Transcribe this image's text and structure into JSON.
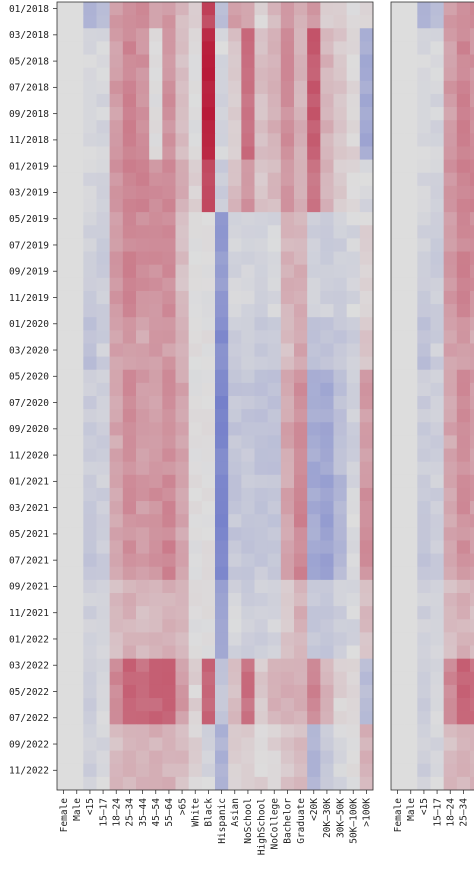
{
  "chart_data": [
    {
      "type": "heatmap",
      "panel": "left",
      "colormap": "coolwarm",
      "rows_by_month_start": "01/2018",
      "row_count": 60,
      "y_tick_labels": [
        "01/2018",
        "03/2018",
        "05/2018",
        "07/2018",
        "09/2018",
        "11/2018",
        "01/2019",
        "03/2019",
        "05/2019",
        "07/2019",
        "09/2019",
        "11/2019",
        "01/2020",
        "03/2020",
        "05/2020",
        "07/2020",
        "09/2020",
        "11/2020",
        "01/2021",
        "03/2021",
        "05/2021",
        "07/2021",
        "09/2021",
        "11/2021",
        "01/2022",
        "03/2022",
        "05/2022",
        "07/2022",
        "09/2022",
        "11/2022"
      ],
      "x_tick_labels": [
        "Female",
        "Male",
        "<15",
        "15–17",
        "18–24",
        "25–34",
        "35–44",
        "45–54",
        "55–64",
        ">65",
        "White",
        "Black",
        "Hispanic",
        "Asian",
        "NoSchool",
        "HighSchool",
        "NoCollege",
        "Bachelor",
        "Graduate",
        "<20K",
        "20K–30K",
        "30K–50K",
        "50K–100K",
        ">100K"
      ],
      "value_range": [
        -1,
        1
      ],
      "periods": [
        {
          "from": 0,
          "to": 2,
          "values": [
            0.0,
            0.0,
            -0.25,
            -0.2,
            0.3,
            0.4,
            0.35,
            0.3,
            0.3,
            0.15,
            0.05,
            0.7,
            -0.2,
            0.3,
            0.25,
            0.05,
            0.15,
            0.3,
            0.2,
            0.3,
            0.1,
            0.05,
            0.0,
            0.05
          ]
        },
        {
          "from": 2,
          "to": 12,
          "values": [
            0.0,
            0.0,
            -0.05,
            -0.05,
            0.3,
            0.4,
            0.35,
            0.0,
            0.35,
            0.15,
            0.0,
            0.85,
            -0.05,
            0.1,
            0.5,
            0.15,
            0.2,
            0.35,
            0.2,
            0.6,
            0.2,
            0.1,
            0.05,
            -0.35
          ]
        },
        {
          "from": 12,
          "to": 16,
          "values": [
            0.0,
            0.0,
            -0.05,
            -0.05,
            0.35,
            0.4,
            0.4,
            0.35,
            0.4,
            0.2,
            0.05,
            0.65,
            -0.1,
            0.15,
            0.35,
            0.1,
            0.15,
            0.3,
            0.2,
            0.45,
            0.2,
            0.1,
            0.05,
            -0.05
          ]
        },
        {
          "from": 16,
          "to": 24,
          "values": [
            0.0,
            0.0,
            -0.1,
            -0.1,
            0.3,
            0.4,
            0.35,
            0.35,
            0.35,
            0.15,
            0.0,
            0.0,
            -0.45,
            -0.05,
            -0.05,
            -0.1,
            -0.05,
            0.2,
            0.2,
            -0.1,
            -0.1,
            -0.1,
            -0.05,
            0.05
          ]
        },
        {
          "from": 24,
          "to": 28,
          "values": [
            0.0,
            0.0,
            -0.2,
            -0.1,
            0.25,
            0.3,
            0.25,
            0.3,
            0.3,
            0.2,
            0.0,
            0.0,
            -0.55,
            -0.1,
            -0.1,
            -0.15,
            -0.1,
            0.15,
            0.25,
            -0.2,
            -0.2,
            -0.15,
            -0.1,
            0.1
          ]
        },
        {
          "from": 28,
          "to": 36,
          "values": [
            0.0,
            0.0,
            -0.1,
            -0.1,
            0.25,
            0.35,
            0.3,
            0.3,
            0.35,
            0.25,
            0.0,
            0.0,
            -0.6,
            -0.15,
            -0.15,
            -0.2,
            -0.2,
            0.25,
            0.35,
            -0.35,
            -0.35,
            -0.2,
            -0.1,
            0.3
          ]
        },
        {
          "from": 36,
          "to": 44,
          "values": [
            0.0,
            0.0,
            -0.15,
            -0.1,
            0.25,
            0.35,
            0.3,
            0.35,
            0.4,
            0.25,
            0.0,
            0.0,
            -0.6,
            -0.15,
            -0.15,
            -0.15,
            -0.15,
            0.25,
            0.4,
            -0.35,
            -0.4,
            -0.25,
            -0.05,
            0.35
          ]
        },
        {
          "from": 44,
          "to": 50,
          "values": [
            0.0,
            0.0,
            -0.1,
            -0.05,
            0.15,
            0.2,
            0.15,
            0.2,
            0.2,
            0.15,
            0.0,
            0.0,
            -0.4,
            -0.05,
            -0.1,
            -0.1,
            -0.05,
            0.1,
            0.2,
            -0.15,
            -0.15,
            -0.1,
            -0.05,
            0.15
          ]
        },
        {
          "from": 50,
          "to": 55,
          "values": [
            0.0,
            0.0,
            -0.1,
            -0.05,
            0.4,
            0.55,
            0.5,
            0.55,
            0.55,
            0.3,
            0.05,
            0.55,
            -0.15,
            0.15,
            0.5,
            0.1,
            0.2,
            0.2,
            0.2,
            0.4,
            0.2,
            0.05,
            0.05,
            -0.2
          ]
        },
        {
          "from": 55,
          "to": 60,
          "values": [
            0.0,
            0.0,
            -0.1,
            -0.05,
            0.15,
            0.2,
            0.2,
            0.2,
            0.2,
            0.15,
            0.05,
            -0.05,
            -0.3,
            0.05,
            0.1,
            0.05,
            0.05,
            0.1,
            0.15,
            -0.3,
            -0.15,
            -0.05,
            0.0,
            0.2
          ]
        }
      ]
    },
    {
      "type": "heatmap",
      "panel": "right",
      "note": "second heatmap, cropped at right edge",
      "x_tick_labels": [
        "Female",
        "Male",
        "<15",
        "15–17",
        "18–24",
        "25–34"
      ],
      "values_same_as_left_for_shared_columns": true
    }
  ]
}
